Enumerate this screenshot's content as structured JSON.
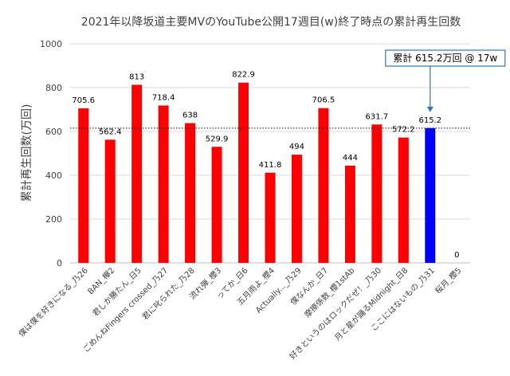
{
  "chart_data": {
    "type": "bar",
    "title": "2021年以降坂道主要MVのYouTube公開17週目(w)終了時点の累計再生回数",
    "ylabel": "累計再生回数(万回)",
    "xlabel": "",
    "ylim": [
      0,
      1000
    ],
    "yticks": [
      0,
      200,
      400,
      600,
      800,
      1000
    ],
    "grid": true,
    "categories": [
      "僕は僕を好きになる_乃26",
      "BAN_欅2",
      "君しか勝たん_日5",
      "ごめんねFingers crossed_乃27",
      "君に叱られた_乃28",
      "流れ弾_櫻3",
      "ってか_日6",
      "五月雨よ_櫻4",
      "Actually..._乃29",
      "僕なんか_日7",
      "摩擦係数_櫻1stAb",
      "好きというのはロックだぜ！_乃30",
      "月と星が踊るMidnight_日8",
      "ここにはないもの_乃31",
      "桜月_櫻5"
    ],
    "values": [
      705.6,
      562.4,
      813,
      718.4,
      638,
      529.9,
      822.9,
      411.8,
      494,
      706.5,
      444,
      631.7,
      572.2,
      615.2,
      0
    ],
    "value_labels": [
      "705.6",
      "562.4",
      "813",
      "718.4",
      "638",
      "529.9",
      "822.9",
      "411.8",
      "494",
      "706.5",
      "444",
      "631.7",
      "572.2",
      "615.2",
      "0"
    ],
    "bar_colors": [
      "#ff0000",
      "#ff0000",
      "#ff0000",
      "#ff0000",
      "#ff0000",
      "#ff0000",
      "#ff0000",
      "#ff0000",
      "#ff0000",
      "#ff0000",
      "#ff0000",
      "#ff0000",
      "#ff0000",
      "#0000ff",
      "#ff0000"
    ],
    "reference_line": {
      "value": 615.2,
      "style": "dotted"
    },
    "annotation": {
      "text": "累計 615.2万回 @ 17w",
      "target_index": 13
    }
  }
}
